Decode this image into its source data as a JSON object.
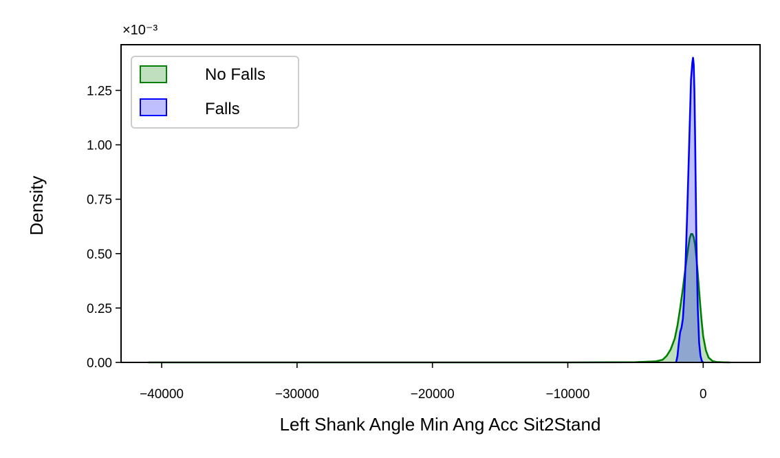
{
  "chart_data": {
    "type": "area",
    "title": "",
    "xlabel": "Left Shank Angle Min Ang Acc Sit2Stand",
    "ylabel": "Density",
    "y_offset_label": "×10⁻³",
    "xlim": [
      -43000,
      4200
    ],
    "ylim": [
      0,
      1.46
    ],
    "x_ticks": [
      -40000,
      -30000,
      -20000,
      -10000,
      0
    ],
    "x_tick_labels": [
      "−40000",
      "−30000",
      "−20000",
      "−10000",
      "0"
    ],
    "y_ticks": [
      0.0,
      0.25,
      0.5,
      0.75,
      1.0,
      1.25
    ],
    "y_tick_labels": [
      "0.00",
      "0.25",
      "0.50",
      "0.75",
      "1.00",
      "1.25"
    ],
    "legend_position": "top-left",
    "grid": false,
    "series": [
      {
        "name": "No Falls",
        "color": "#008000",
        "fill": "#008000",
        "fill_opacity": 0.25,
        "x": [
          -41000,
          -30000,
          -20000,
          -10000,
          -5000,
          -3500,
          -3000,
          -2700,
          -2400,
          -2100,
          -1900,
          -1700,
          -1500,
          -1300,
          -1100,
          -1000,
          -900,
          -800,
          -700,
          -600,
          -500,
          -400,
          -300,
          -200,
          -100,
          0,
          200,
          400,
          700,
          1000,
          1500,
          2000
        ],
        "y": [
          0.0,
          0.0,
          0.0,
          0.0,
          0.001,
          0.005,
          0.012,
          0.03,
          0.06,
          0.11,
          0.17,
          0.25,
          0.34,
          0.44,
          0.53,
          0.57,
          0.59,
          0.59,
          0.575,
          0.54,
          0.48,
          0.41,
          0.33,
          0.25,
          0.18,
          0.12,
          0.055,
          0.022,
          0.006,
          0.002,
          0.0005,
          0.0
        ]
      },
      {
        "name": "Falls",
        "color": "#0000ff",
        "fill": "#0000ff",
        "fill_opacity": 0.25,
        "x": [
          -2000,
          -1900,
          -1800,
          -1700,
          -1600,
          -1500,
          -1400,
          -1300,
          -1200,
          -1100,
          -1000,
          -900,
          -800,
          -750,
          -700,
          -650,
          -600,
          -550,
          -500,
          -400,
          -300,
          -200,
          -100,
          0
        ],
        "y": [
          0.0,
          0.03,
          0.09,
          0.14,
          0.16,
          0.2,
          0.3,
          0.46,
          0.65,
          0.86,
          1.08,
          1.3,
          1.38,
          1.4,
          1.37,
          1.25,
          1.05,
          0.8,
          0.55,
          0.25,
          0.09,
          0.03,
          0.006,
          0.0
        ]
      }
    ]
  }
}
